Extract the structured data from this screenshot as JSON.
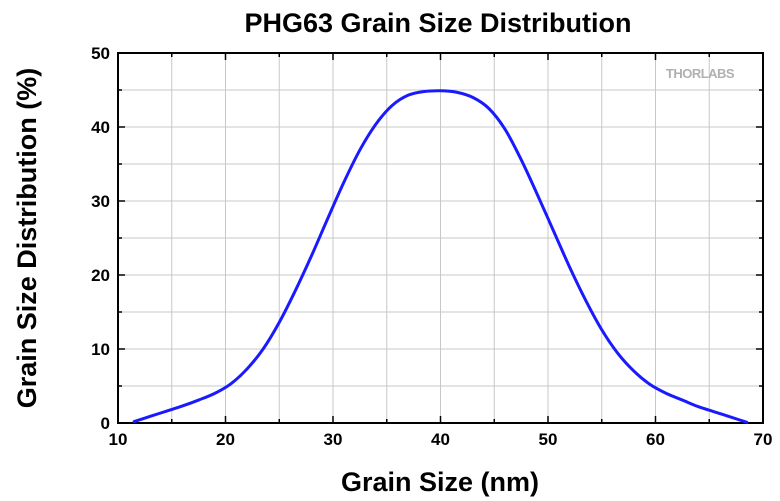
{
  "chart_data": {
    "type": "line",
    "title": "PHG63 Grain Size Distribution",
    "xlabel": "Grain Size (nm)",
    "ylabel": "Grain Size Distribution (%)",
    "xlim": [
      10,
      70
    ],
    "ylim": [
      0,
      50
    ],
    "xticks": [
      10,
      20,
      30,
      40,
      50,
      60,
      70
    ],
    "yticks": [
      0,
      10,
      20,
      30,
      40,
      50
    ],
    "grid": true,
    "logo_text": "THORLABS",
    "colors": {
      "line": "#1a1aff",
      "grid": "#c8c8c8",
      "axis": "#000000"
    },
    "series": [
      {
        "x": [
          11.5,
          13,
          14.5,
          16,
          17.5,
          19,
          20.5,
          22,
          23.5,
          25,
          26.5,
          28,
          29.5,
          31,
          32.5,
          34,
          35.5,
          37,
          38.5,
          40,
          41.5,
          43,
          44.5,
          46,
          47.5,
          49,
          50.5,
          52,
          53.5,
          55,
          56.5,
          58,
          59.5,
          61,
          62.5,
          64,
          65.5,
          67,
          68.5
        ],
        "y": [
          0.2,
          0.9,
          1.6,
          2.3,
          3.1,
          4.0,
          5.3,
          7.3,
          10.0,
          13.6,
          17.9,
          22.6,
          27.6,
          32.5,
          36.9,
          40.4,
          42.9,
          44.3,
          44.8,
          44.9,
          44.7,
          44.0,
          42.5,
          39.7,
          35.6,
          30.9,
          26.0,
          21.1,
          16.6,
          12.6,
          9.4,
          7.0,
          5.2,
          4.0,
          3.1,
          2.2,
          1.5,
          0.8,
          0.1
        ]
      }
    ]
  }
}
